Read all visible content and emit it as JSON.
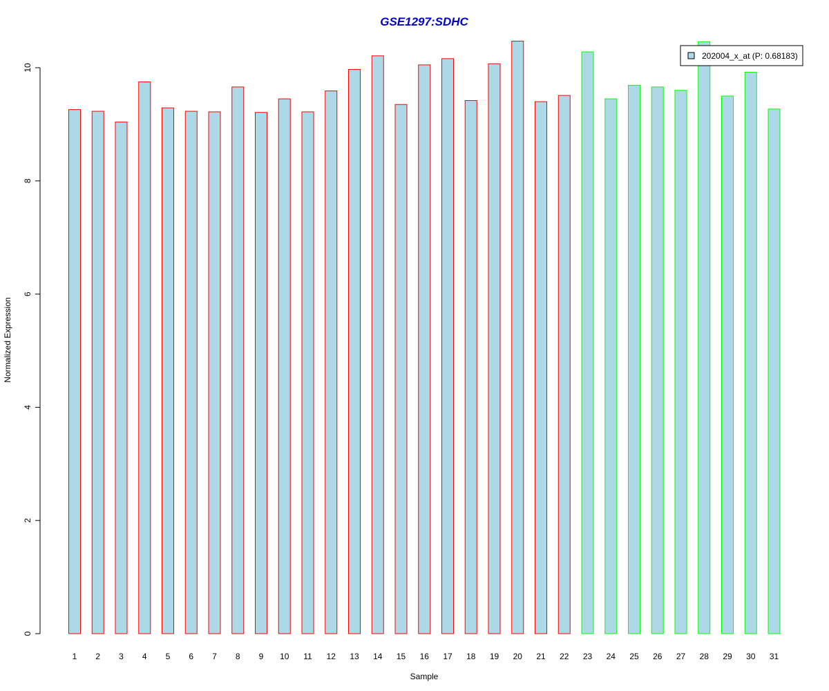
{
  "chart_data": {
    "type": "bar",
    "title": "GSE1297:SDHC",
    "xlabel": "Sample",
    "ylabel": "Normalized Expression",
    "ylim": [
      0,
      10.5
    ],
    "y_ticks": [
      "0",
      "2",
      "4",
      "6",
      "8",
      "10"
    ],
    "categories": [
      "1",
      "2",
      "3",
      "4",
      "5",
      "6",
      "7",
      "8",
      "9",
      "10",
      "11",
      "12",
      "13",
      "14",
      "15",
      "16",
      "17",
      "18",
      "19",
      "20",
      "21",
      "22",
      "23",
      "24",
      "25",
      "26",
      "27",
      "28",
      "29",
      "30",
      "31"
    ],
    "series": [
      {
        "name": "202004_x_at (P: 0.68183)",
        "values": [
          9.26,
          9.23,
          9.04,
          9.75,
          9.29,
          9.23,
          9.22,
          9.66,
          9.21,
          9.45,
          9.22,
          9.59,
          9.97,
          10.21,
          9.35,
          10.05,
          10.16,
          9.42,
          10.07,
          10.47,
          9.4,
          9.51,
          10.28,
          9.45,
          9.69,
          9.66,
          9.6,
          10.46,
          9.5,
          9.92,
          9.27
        ]
      }
    ],
    "groups": [
      {
        "samples": [
          1,
          22
        ],
        "border_color": "#ff0000"
      },
      {
        "samples": [
          23,
          31
        ],
        "border_color": "#00ff00"
      }
    ],
    "grid": false,
    "legend_position": "top-right"
  },
  "colors": {
    "bar_fill": "#add8e6",
    "title": "#0000cc",
    "axis": "#000000"
  }
}
